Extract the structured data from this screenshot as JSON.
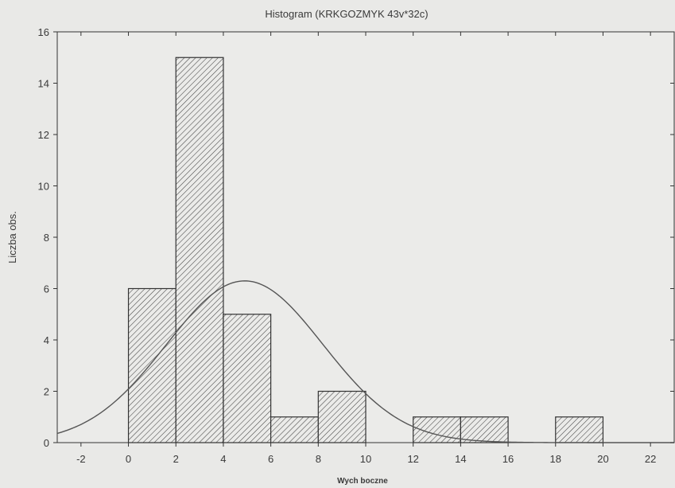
{
  "chart_data": {
    "type": "bar",
    "title": "Histogram (KRKGOZMYK 43v*32c)",
    "xlabel": "Wych boczne",
    "ylabel": "Liczba obs.",
    "xlim": [
      -3,
      23
    ],
    "ylim": [
      0,
      16
    ],
    "x_ticks": [
      -2,
      0,
      2,
      4,
      6,
      8,
      10,
      12,
      14,
      16,
      18,
      20,
      22
    ],
    "y_ticks": [
      0,
      2,
      4,
      6,
      8,
      10,
      12,
      14,
      16
    ],
    "grid": false,
    "bars": [
      {
        "x0": 0,
        "x1": 2,
        "value": 6
      },
      {
        "x0": 2,
        "x1": 4,
        "value": 15
      },
      {
        "x0": 4,
        "x1": 6,
        "value": 5
      },
      {
        "x0": 6,
        "x1": 8,
        "value": 1
      },
      {
        "x0": 8,
        "x1": 10,
        "value": 2
      },
      {
        "x0": 10,
        "x1": 12,
        "value": 0
      },
      {
        "x0": 12,
        "x1": 14,
        "value": 1
      },
      {
        "x0": 14,
        "x1": 16,
        "value": 1
      },
      {
        "x0": 16,
        "x1": 18,
        "value": 0
      },
      {
        "x0": 18,
        "x1": 20,
        "value": 1
      }
    ],
    "normal_curve": {
      "mean": 4.9,
      "peak": 6.3,
      "sd": 3.3
    },
    "colors": {
      "bar_stroke": "#333333",
      "hatch": "#444444",
      "curve": "#555555",
      "axis": "#333333",
      "background": "#ebebe9"
    }
  }
}
